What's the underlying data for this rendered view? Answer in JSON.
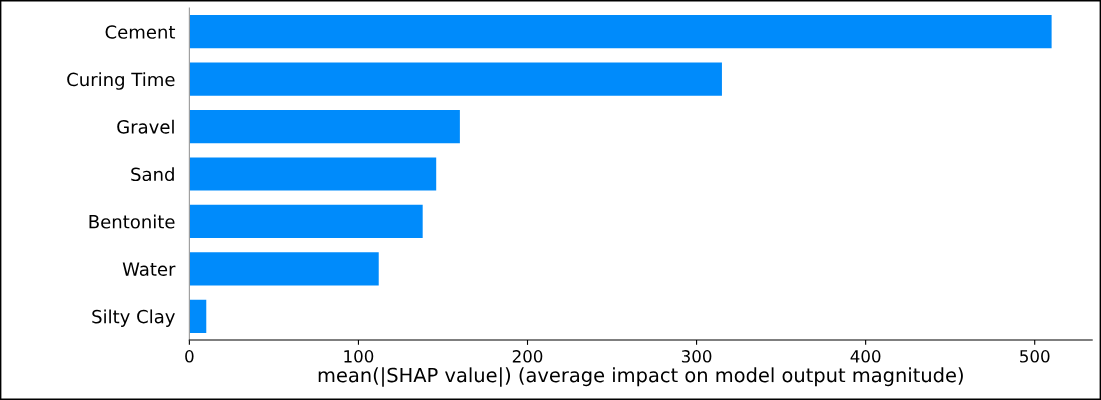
{
  "chart_data": {
    "type": "bar",
    "orientation": "horizontal",
    "xlabel": "mean(|SHAP value|) (average impact on model output magnitude)",
    "categories": [
      "Cement",
      "Curing Time",
      "Gravel",
      "Sand",
      "Bentonite",
      "Water",
      "Silty Clay"
    ],
    "values": [
      510,
      315,
      160,
      146,
      138,
      112,
      10
    ],
    "color": "#008bfb",
    "xlim": [
      0,
      534
    ],
    "xticks": [
      0,
      100,
      200,
      300,
      400,
      500
    ],
    "grid": false,
    "legend": false
  }
}
